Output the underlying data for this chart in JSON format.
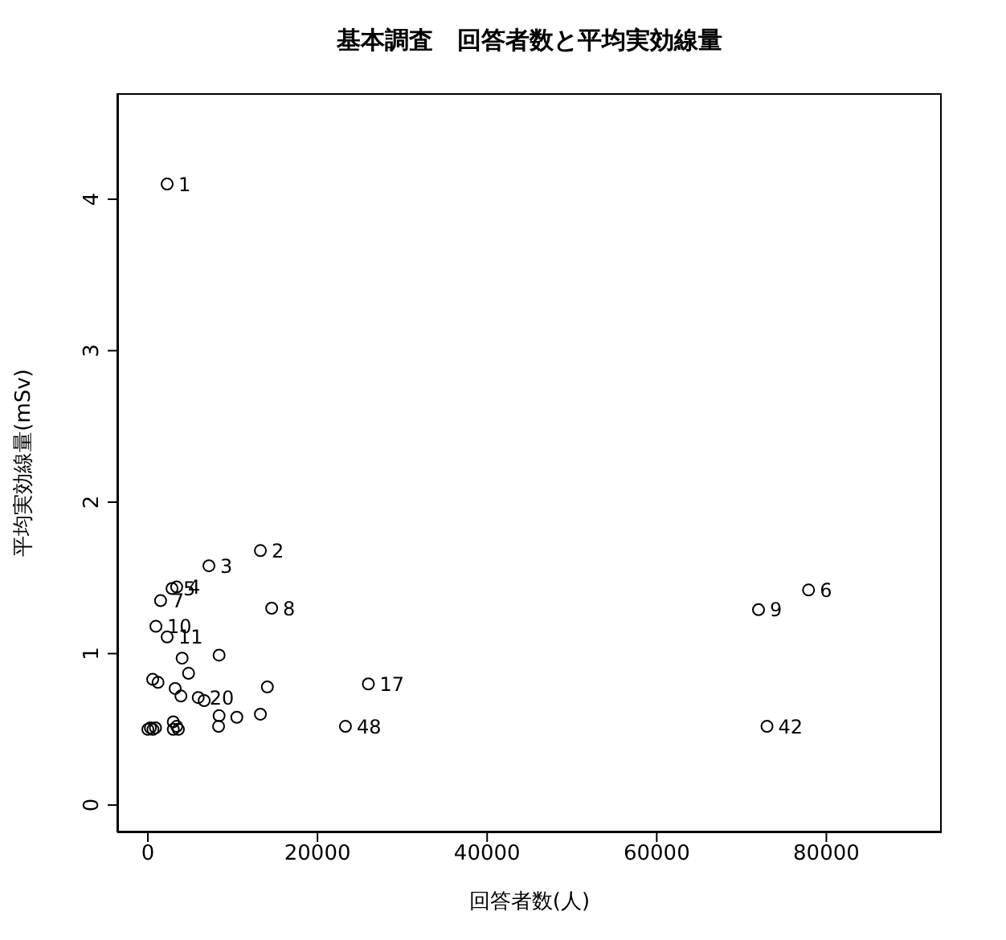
{
  "chart_data": {
    "type": "scatter",
    "title": "基本調査　回答者数と平均実効線量",
    "xlabel": "回答者数(人)",
    "ylabel": "平均実効線量(mSv)",
    "xlim": [
      -3600,
      93600
    ],
    "ylim": [
      -0.18,
      4.7
    ],
    "xticks": [
      0,
      20000,
      40000,
      60000,
      80000
    ],
    "yticks": [
      0,
      1,
      2,
      3,
      4
    ],
    "grid": false,
    "marker": "circle",
    "series": [
      {
        "color": "#000000",
        "x": [
          2275,
          13270,
          7200,
          3400,
          2850,
          77900,
          1500,
          14600,
          72000,
          950,
          2275,
          26000,
          5940,
          73000,
          23300,
          4040,
          8400,
          4800,
          570,
          1200,
          3220,
          3900,
          6640,
          14090,
          8400,
          10490,
          13270,
          8340,
          0,
          300,
          600,
          900,
          3000,
          3400,
          3600,
          3000
        ],
        "values": [
          4.1,
          1.68,
          1.58,
          1.44,
          1.43,
          1.42,
          1.35,
          1.3,
          1.29,
          1.18,
          1.11,
          0.8,
          0.71,
          0.52,
          0.52,
          0.97,
          0.99,
          0.87,
          0.83,
          0.81,
          0.77,
          0.72,
          0.69,
          0.78,
          0.59,
          0.58,
          0.6,
          0.52,
          0.5,
          0.51,
          0.5,
          0.51,
          0.5,
          0.52,
          0.5,
          0.55
        ]
      }
    ],
    "annotations": [
      {
        "text": "1",
        "x": 2275,
        "y": 4.1
      },
      {
        "text": "2",
        "x": 13270,
        "y": 1.68
      },
      {
        "text": "3",
        "x": 7200,
        "y": 1.58
      },
      {
        "text": "4",
        "x": 3400,
        "y": 1.44
      },
      {
        "text": "5",
        "x": 2850,
        "y": 1.43
      },
      {
        "text": "6",
        "x": 77900,
        "y": 1.42
      },
      {
        "text": "7",
        "x": 1500,
        "y": 1.35
      },
      {
        "text": "8",
        "x": 14600,
        "y": 1.3
      },
      {
        "text": "9",
        "x": 72000,
        "y": 1.29
      },
      {
        "text": "10",
        "x": 950,
        "y": 1.18
      },
      {
        "text": "11",
        "x": 2275,
        "y": 1.11
      },
      {
        "text": "17",
        "x": 26000,
        "y": 0.8
      },
      {
        "text": "20",
        "x": 5940,
        "y": 0.71
      },
      {
        "text": "42",
        "x": 73000,
        "y": 0.52
      },
      {
        "text": "48",
        "x": 23300,
        "y": 0.52
      }
    ]
  }
}
